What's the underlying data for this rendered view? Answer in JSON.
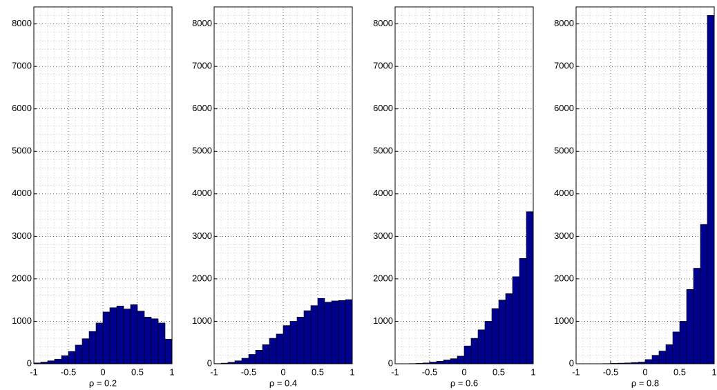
{
  "chart_data": [
    {
      "type": "histogram",
      "xlabel": "ρ = 0.2",
      "color": "#00008f",
      "bins": [
        -1,
        -0.9,
        -0.8,
        -0.7,
        -0.6,
        -0.5,
        -0.4,
        -0.3,
        -0.2,
        -0.1,
        0,
        0.1,
        0.2,
        0.3,
        0.4,
        0.5,
        0.6,
        0.7,
        0.8,
        0.9,
        1
      ],
      "values": [
        20,
        40,
        70,
        110,
        190,
        290,
        440,
        590,
        760,
        960,
        1220,
        1320,
        1360,
        1290,
        1390,
        1240,
        1100,
        1060,
        960,
        580
      ],
      "xlim": [
        -1,
        1
      ],
      "xticks": [
        -1,
        -0.5,
        0,
        0.5,
        1
      ],
      "ylim": [
        0,
        8400
      ],
      "yticks": [
        0,
        1000,
        2000,
        3000,
        4000,
        5000,
        6000,
        7000,
        8000
      ],
      "grid": true,
      "minor_grid": true
    },
    {
      "type": "histogram",
      "xlabel": "ρ = 0.4",
      "color": "#00008f",
      "bins": [
        -1,
        -0.9,
        -0.8,
        -0.7,
        -0.6,
        -0.5,
        -0.4,
        -0.3,
        -0.2,
        -0.1,
        0,
        0.1,
        0.2,
        0.3,
        0.4,
        0.5,
        0.6,
        0.7,
        0.8,
        0.9,
        1
      ],
      "values": [
        5,
        15,
        35,
        70,
        130,
        220,
        320,
        450,
        600,
        700,
        900,
        1000,
        1100,
        1250,
        1370,
        1540,
        1450,
        1480,
        1490,
        1510
      ],
      "xlim": [
        -1,
        1
      ],
      "xticks": [
        -1,
        -0.5,
        0,
        0.5,
        1
      ],
      "ylim": [
        0,
        8400
      ],
      "yticks": [
        0,
        1000,
        2000,
        3000,
        4000,
        5000,
        6000,
        7000,
        8000
      ],
      "grid": true,
      "minor_grid": true
    },
    {
      "type": "histogram",
      "xlabel": "ρ = 0.6",
      "color": "#00008f",
      "bins": [
        -1,
        -0.9,
        -0.8,
        -0.7,
        -0.6,
        -0.5,
        -0.4,
        -0.3,
        -0.2,
        -0.1,
        0,
        0.1,
        0.2,
        0.3,
        0.4,
        0.5,
        0.6,
        0.7,
        0.8,
        0.9,
        1
      ],
      "values": [
        0,
        3,
        5,
        10,
        20,
        40,
        60,
        90,
        120,
        180,
        420,
        600,
        800,
        1000,
        1300,
        1500,
        1650,
        2050,
        2480,
        3580
      ],
      "xlim": [
        -1,
        1
      ],
      "xticks": [
        -1,
        -0.5,
        0,
        0.5,
        1
      ],
      "ylim": [
        0,
        8400
      ],
      "yticks": [
        0,
        1000,
        2000,
        3000,
        4000,
        5000,
        6000,
        7000,
        8000
      ],
      "grid": true,
      "minor_grid": true
    },
    {
      "type": "histogram",
      "xlabel": "ρ = 0.8",
      "color": "#00008f",
      "bins": [
        -1,
        -0.9,
        -0.8,
        -0.7,
        -0.6,
        -0.5,
        -0.4,
        -0.3,
        -0.2,
        -0.1,
        0,
        0.1,
        0.2,
        0.3,
        0.4,
        0.5,
        0.6,
        0.7,
        0.8,
        0.9,
        1
      ],
      "values": [
        0,
        0,
        2,
        3,
        5,
        10,
        15,
        20,
        30,
        40,
        100,
        200,
        300,
        450,
        750,
        1000,
        1750,
        2250,
        3280,
        8200
      ],
      "xlim": [
        -1,
        1
      ],
      "xticks": [
        -1,
        -0.5,
        0,
        0.5,
        1
      ],
      "ylim": [
        0,
        8400
      ],
      "yticks": [
        0,
        1000,
        2000,
        3000,
        4000,
        5000,
        6000,
        7000,
        8000
      ],
      "grid": true,
      "minor_grid": true
    }
  ]
}
